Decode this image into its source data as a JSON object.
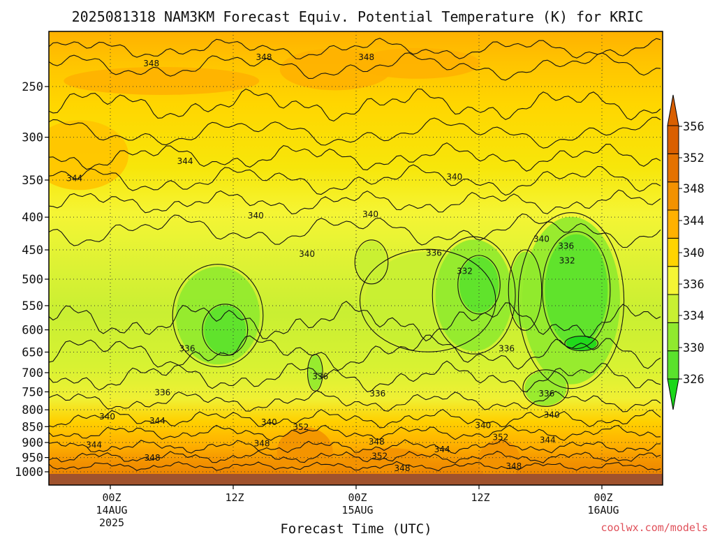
{
  "chart_data": {
    "type": "heatmap",
    "title": "2025081318 NAM3KM Forecast Equiv. Potential Temperature (K) for KRIC",
    "xlabel": "Forecast Time (UTC)",
    "ylabel": "",
    "y_axis": {
      "scale": "log",
      "inverted": true,
      "range": [
        1000,
        200
      ],
      "ticks": [
        250,
        300,
        350,
        400,
        450,
        500,
        550,
        600,
        650,
        700,
        750,
        800,
        850,
        900,
        950,
        1000
      ]
    },
    "x_axis": {
      "range_hours": [
        -6.5,
        43.5
      ],
      "ticks": [
        {
          "hour": 0,
          "lines": [
            "00Z",
            "14AUG",
            "2025"
          ]
        },
        {
          "hour": 12,
          "lines": [
            "12Z"
          ]
        },
        {
          "hour": 24,
          "lines": [
            "00Z",
            "15AUG"
          ]
        },
        {
          "hour": 36,
          "lines": [
            "12Z"
          ]
        },
        {
          "hour": 48,
          "lines": [
            "00Z",
            "16AUG"
          ]
        }
      ]
    },
    "grid": true,
    "colorbar": {
      "ticks": [
        326,
        330,
        334,
        336,
        340,
        344,
        348,
        352,
        356
      ],
      "colors": [
        "#1ad71a",
        "#5ae22c",
        "#90ea2e",
        "#c8f032",
        "#f5f534",
        "#ffd400",
        "#ffb100",
        "#f39200",
        "#e57200",
        "#d95f00"
      ]
    },
    "contour_labels": [
      {
        "text": "348",
        "hour": 4,
        "p": 230
      },
      {
        "text": "348",
        "hour": 15,
        "p": 225
      },
      {
        "text": "348",
        "hour": 25,
        "p": 225
      },
      {
        "text": "344",
        "hour": -3.5,
        "p": 348
      },
      {
        "text": "344",
        "hour": 7.3,
        "p": 327
      },
      {
        "text": "340",
        "hour": 14.2,
        "p": 398
      },
      {
        "text": "340",
        "hour": 25.4,
        "p": 396
      },
      {
        "text": "340",
        "hour": 33.6,
        "p": 346
      },
      {
        "text": "340",
        "hour": 19.2,
        "p": 457
      },
      {
        "text": "340",
        "hour": 42.1,
        "p": 433
      },
      {
        "text": "336",
        "hour": 44.5,
        "p": 444
      },
      {
        "text": "332",
        "hour": 44.6,
        "p": 468
      },
      {
        "text": "336",
        "hour": 31.6,
        "p": 455
      },
      {
        "text": "332",
        "hour": 34.6,
        "p": 486
      },
      {
        "text": "336",
        "hour": 7.5,
        "p": 642
      },
      {
        "text": "336",
        "hour": 20.5,
        "p": 710
      },
      {
        "text": "336",
        "hour": 5.1,
        "p": 752
      },
      {
        "text": "336",
        "hour": 26.1,
        "p": 755
      },
      {
        "text": "336",
        "hour": 38.7,
        "p": 642
      },
      {
        "text": "336",
        "hour": 42.6,
        "p": 755
      },
      {
        "text": "340",
        "hour": -0.3,
        "p": 820
      },
      {
        "text": "344",
        "hour": 4.6,
        "p": 833
      },
      {
        "text": "340",
        "hour": 15.5,
        "p": 837
      },
      {
        "text": "340",
        "hour": 36.4,
        "p": 846
      },
      {
        "text": "340",
        "hour": 43.1,
        "p": 815
      },
      {
        "text": "352",
        "hour": 18.6,
        "p": 852
      },
      {
        "text": "352",
        "hour": 26.3,
        "p": 945
      },
      {
        "text": "352",
        "hour": 38.1,
        "p": 883
      },
      {
        "text": "344",
        "hour": -1.6,
        "p": 908
      },
      {
        "text": "348",
        "hour": 4.1,
        "p": 951
      },
      {
        "text": "348",
        "hour": 14.8,
        "p": 903
      },
      {
        "text": "348",
        "hour": 26.0,
        "p": 898
      },
      {
        "text": "344",
        "hour": 32.4,
        "p": 923
      },
      {
        "text": "344",
        "hour": 42.7,
        "p": 892
      },
      {
        "text": "348",
        "hour": 28.5,
        "p": 988
      },
      {
        "text": "348",
        "hour": 39.4,
        "p": 980
      }
    ]
  },
  "credit": "coolwx.com/models"
}
